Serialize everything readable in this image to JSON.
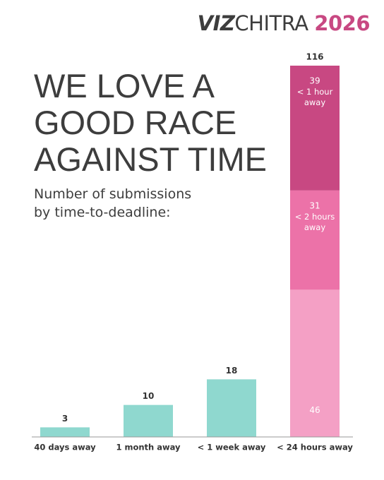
{
  "brand": [
    "VIZ",
    "CHITRA"
  ],
  "edition": "2026",
  "chart_data": {
    "type": "bar",
    "title": [
      "WE LOVE A",
      "GOOD RACE",
      "AGAINST TIME"
    ],
    "subtitle": "Number of submissions by time-to-deadline:",
    "categories": [
      "40 days away",
      "1 month away",
      "< 1 week away",
      "< 24 hours away"
    ],
    "values": [
      3,
      10,
      18,
      116
    ],
    "color": "#8fd8cf",
    "stack": [
      {
        "value": 46,
        "color": "#f4a0c5"
      },
      {
        "value": 31,
        "label": "< 2 hours away",
        "color": "#ec72a8"
      },
      {
        "value": 39,
        "label": "< 1 hour away",
        "color": "#c84882"
      }
    ],
    "ylim": [
      0,
      116
    ]
  }
}
